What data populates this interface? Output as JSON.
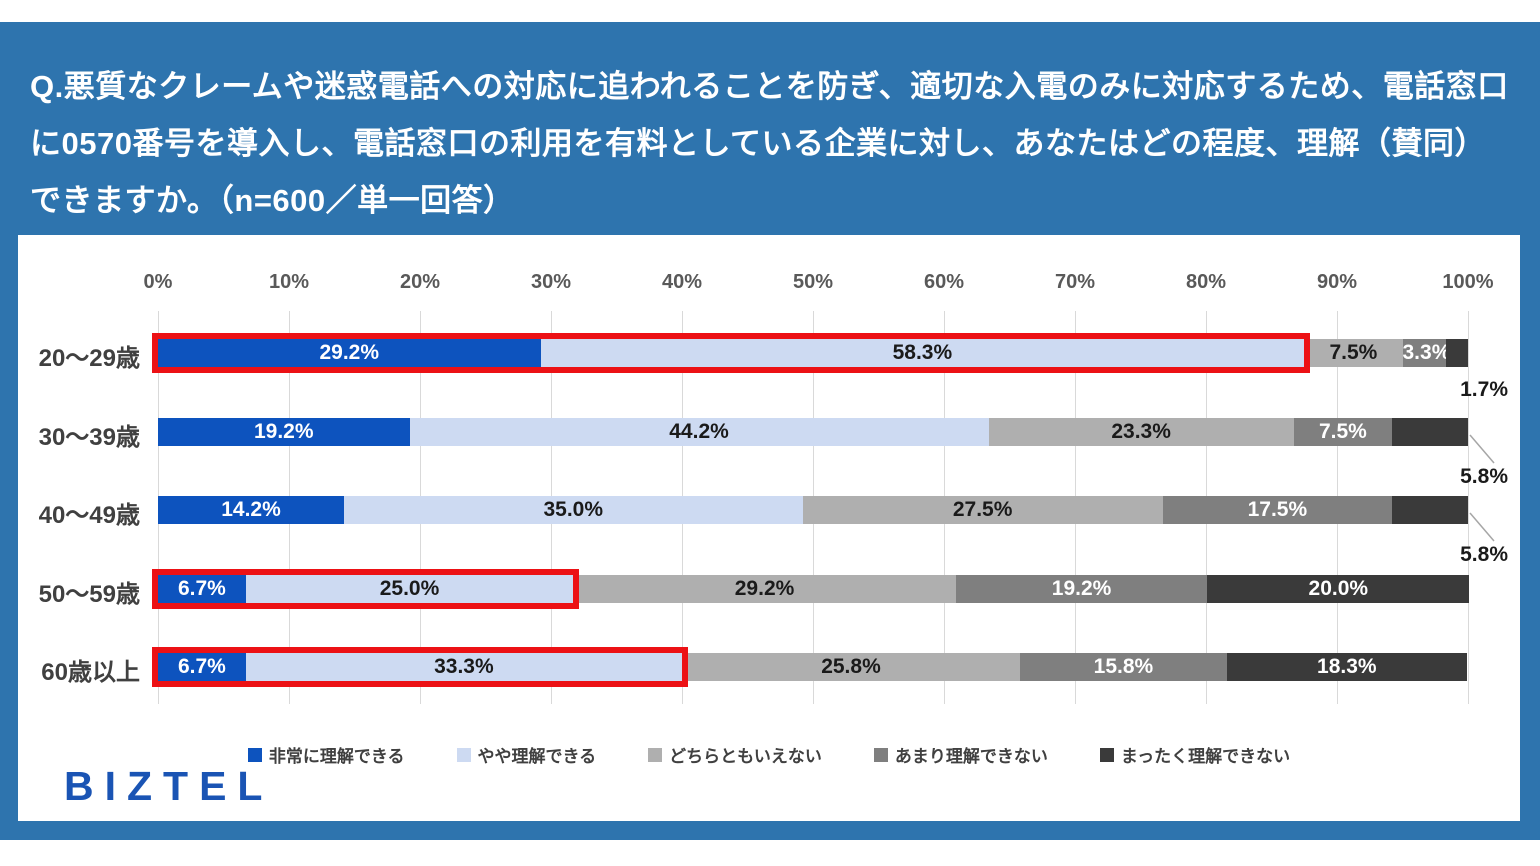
{
  "header": {
    "question": "Q.悪質なクレームや迷惑電話への対応に追われることを防ぎ、適切な入電のみに対応するため、電話窓口に0570番号を導入し、電話窓口の利用を有料としている企業に対し、あなたはどの程度、理解（賛同）できますか。（n=600／単一回答）"
  },
  "branding": {
    "logo_text": "BIZTEL"
  },
  "colors": {
    "card_blue": "#2E74AE",
    "bar_dark_blue": "#0D53BE",
    "bar_light_blue": "#CDDAF2",
    "bar_light_gray": "#AFAFAF",
    "bar_mid_gray": "#7F7F7F",
    "bar_dark_gray": "#3A3A3A",
    "highlight_red": "#EC1115",
    "logo_blue": "#1A54B4",
    "gridline_gray": "#D9D9D9",
    "leader_gray": "#A6A6A6"
  },
  "chart_data": {
    "type": "bar",
    "orientation": "horizontal-stacked",
    "title": "",
    "xlabel": "",
    "ylabel": "",
    "x_axis": {
      "min": 0,
      "max": 100,
      "ticks": [
        "0%",
        "10%",
        "20%",
        "30%",
        "40%",
        "50%",
        "60%",
        "70%",
        "80%",
        "90%",
        "100%"
      ],
      "grid": true
    },
    "categories": [
      "20〜29歳",
      "30〜39歳",
      "40〜49歳",
      "50〜59歳",
      "60歳以上"
    ],
    "series": [
      {
        "name": "非常に理解できる",
        "color_key": "bar_dark_blue",
        "label_color": "white",
        "values": [
          29.2,
          19.2,
          14.2,
          6.7,
          6.7
        ]
      },
      {
        "name": "やや理解できる",
        "color_key": "bar_light_blue",
        "label_color": "black",
        "values": [
          58.3,
          44.2,
          35.0,
          25.0,
          33.3
        ]
      },
      {
        "name": "どちらともいえない",
        "color_key": "bar_light_gray",
        "label_color": "black",
        "values": [
          7.5,
          23.3,
          27.5,
          29.2,
          25.8
        ]
      },
      {
        "name": "あまり理解できない",
        "color_key": "bar_mid_gray",
        "label_color": "white",
        "values": [
          3.3,
          7.5,
          17.5,
          19.2,
          15.8
        ]
      },
      {
        "name": "まったく理解できない",
        "color_key": "bar_dark_gray",
        "label_color": "white",
        "values": [
          1.7,
          5.8,
          5.8,
          20.0,
          18.3
        ]
      }
    ],
    "value_suffix": "%",
    "outside_labels": [
      {
        "row": 0,
        "series": 4,
        "text": "1.7%",
        "leader": false
      },
      {
        "row": 1,
        "series": 4,
        "text": "5.8%",
        "leader": true
      },
      {
        "row": 2,
        "series": 4,
        "text": "5.8%",
        "leader": true
      }
    ],
    "highlighted_rows": [
      0,
      3,
      4
    ],
    "highlight_span_series": 2,
    "legend_position": "bottom",
    "legend": [
      "非常に理解できる",
      "やや理解できる",
      "どちらともいえない",
      "あまり理解できない",
      "まったく理解できない"
    ]
  }
}
